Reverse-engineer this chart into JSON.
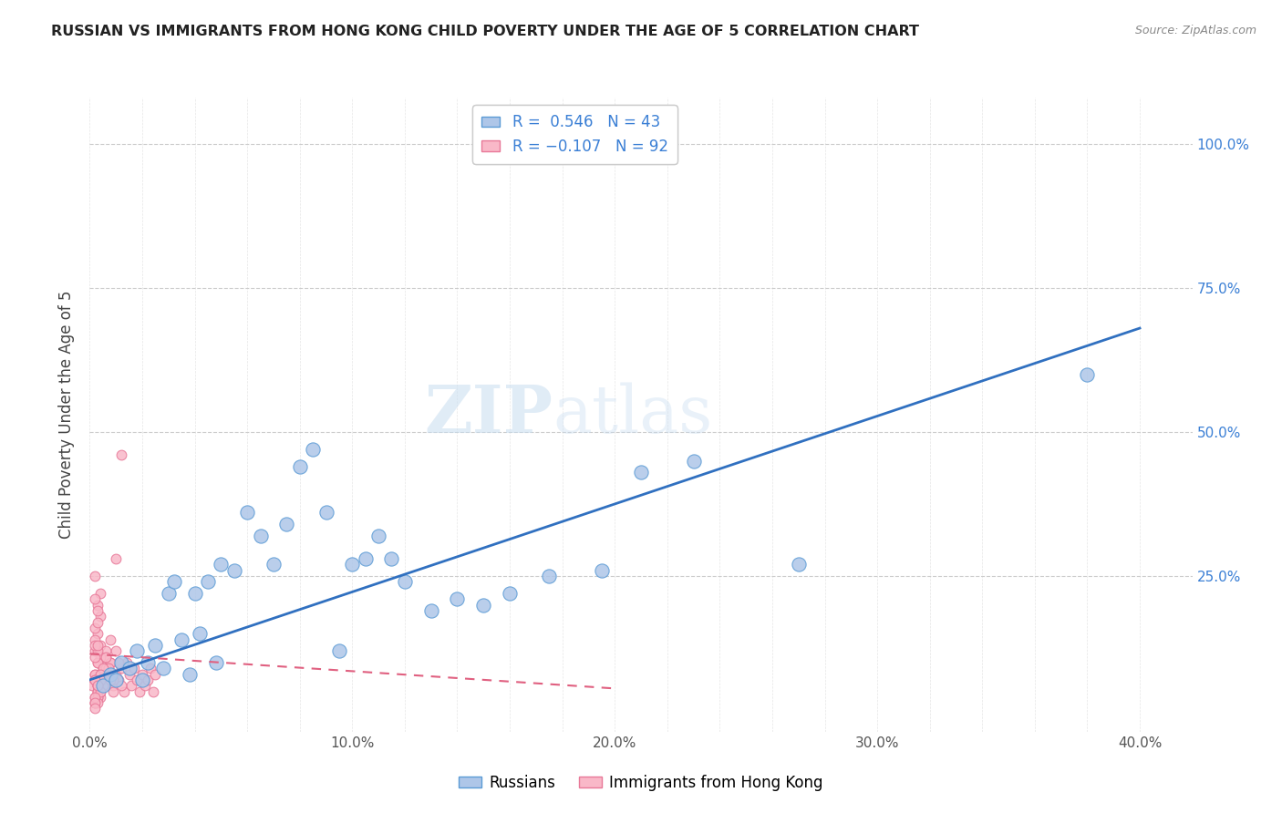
{
  "title": "RUSSIAN VS IMMIGRANTS FROM HONG KONG CHILD POVERTY UNDER THE AGE OF 5 CORRELATION CHART",
  "source": "Source: ZipAtlas.com",
  "ylabel": "Child Poverty Under the Age of 5",
  "xlim": [
    0.0,
    0.42
  ],
  "ylim": [
    -0.02,
    1.08
  ],
  "xtick_labels": [
    "0.0%",
    "",
    "",
    "",
    "",
    "10.0%",
    "",
    "",
    "",
    "",
    "20.0%",
    "",
    "",
    "",
    "",
    "30.0%",
    "",
    "",
    "",
    "",
    "40.0%"
  ],
  "xtick_values": [
    0.0,
    0.02,
    0.04,
    0.06,
    0.08,
    0.1,
    0.12,
    0.14,
    0.16,
    0.18,
    0.2,
    0.22,
    0.24,
    0.26,
    0.28,
    0.3,
    0.32,
    0.34,
    0.36,
    0.38,
    0.4
  ],
  "xtick_major_labels": [
    "0.0%",
    "10.0%",
    "20.0%",
    "30.0%",
    "40.0%"
  ],
  "xtick_major_values": [
    0.0,
    0.1,
    0.2,
    0.3,
    0.4
  ],
  "ytick_labels": [
    "100.0%",
    "75.0%",
    "50.0%",
    "25.0%"
  ],
  "ytick_values": [
    1.0,
    0.75,
    0.5,
    0.25
  ],
  "russian_color": "#aec6e8",
  "hk_color": "#f9b8c8",
  "russian_edge": "#5b9bd5",
  "hk_edge": "#e87898",
  "trendline_russian_color": "#3070c0",
  "trendline_hk_color": "#e06080",
  "legend_label1": "Russians",
  "legend_label2": "Immigrants from Hong Kong",
  "watermark_zip": "ZIP",
  "watermark_atlas": "atlas",
  "background_color": "#ffffff",
  "grid_color": "#cccccc",
  "title_color": "#222222",
  "axis_label_color": "#444444",
  "ytick_label_color": "#3a7fd5",
  "source_color": "#888888",
  "russian_x": [
    0.005,
    0.008,
    0.01,
    0.012,
    0.015,
    0.018,
    0.02,
    0.022,
    0.025,
    0.028,
    0.03,
    0.032,
    0.035,
    0.038,
    0.04,
    0.042,
    0.045,
    0.048,
    0.05,
    0.055,
    0.06,
    0.065,
    0.07,
    0.075,
    0.08,
    0.085,
    0.09,
    0.095,
    0.1,
    0.105,
    0.11,
    0.115,
    0.12,
    0.13,
    0.14,
    0.15,
    0.16,
    0.175,
    0.195,
    0.21,
    0.23,
    0.27,
    0.38
  ],
  "russian_y": [
    0.06,
    0.08,
    0.07,
    0.1,
    0.09,
    0.12,
    0.07,
    0.1,
    0.13,
    0.09,
    0.22,
    0.24,
    0.14,
    0.08,
    0.22,
    0.15,
    0.24,
    0.1,
    0.27,
    0.26,
    0.36,
    0.32,
    0.27,
    0.34,
    0.44,
    0.47,
    0.36,
    0.12,
    0.27,
    0.28,
    0.32,
    0.28,
    0.24,
    0.19,
    0.21,
    0.2,
    0.22,
    0.25,
    0.26,
    0.43,
    0.45,
    0.27,
    0.6
  ],
  "hk_x": [
    0.001,
    0.002,
    0.003,
    0.004,
    0.005,
    0.006,
    0.007,
    0.008,
    0.009,
    0.01,
    0.011,
    0.012,
    0.013,
    0.014,
    0.015,
    0.016,
    0.017,
    0.018,
    0.019,
    0.02,
    0.021,
    0.022,
    0.023,
    0.024,
    0.025,
    0.002,
    0.003,
    0.004,
    0.005,
    0.006,
    0.007,
    0.008,
    0.009,
    0.01,
    0.011,
    0.012,
    0.003,
    0.004,
    0.005,
    0.006,
    0.007,
    0.008,
    0.003,
    0.004,
    0.005,
    0.006,
    0.002,
    0.003,
    0.004,
    0.005,
    0.002,
    0.003,
    0.004,
    0.002,
    0.003,
    0.002,
    0.003,
    0.004,
    0.005,
    0.006,
    0.007,
    0.008,
    0.009,
    0.002,
    0.003,
    0.004,
    0.002,
    0.003,
    0.004,
    0.005,
    0.002,
    0.003,
    0.002,
    0.003,
    0.004,
    0.002,
    0.003,
    0.004,
    0.002,
    0.003,
    0.002,
    0.003,
    0.003,
    0.002,
    0.003,
    0.004,
    0.002,
    0.003,
    0.002,
    0.002,
    0.01,
    0.012
  ],
  "hk_y": [
    0.06,
    0.08,
    0.05,
    0.07,
    0.09,
    0.06,
    0.08,
    0.1,
    0.06,
    0.08,
    0.07,
    0.09,
    0.05,
    0.1,
    0.08,
    0.06,
    0.09,
    0.07,
    0.05,
    0.08,
    0.06,
    0.07,
    0.09,
    0.05,
    0.08,
    0.12,
    0.1,
    0.13,
    0.08,
    0.11,
    0.09,
    0.14,
    0.07,
    0.12,
    0.1,
    0.06,
    0.15,
    0.18,
    0.09,
    0.12,
    0.08,
    0.1,
    0.2,
    0.22,
    0.07,
    0.09,
    0.25,
    0.19,
    0.11,
    0.08,
    0.14,
    0.12,
    0.07,
    0.16,
    0.1,
    0.13,
    0.17,
    0.08,
    0.06,
    0.11,
    0.09,
    0.07,
    0.05,
    0.21,
    0.06,
    0.04,
    0.08,
    0.13,
    0.05,
    0.09,
    0.07,
    0.04,
    0.11,
    0.06,
    0.08,
    0.03,
    0.05,
    0.07,
    0.04,
    0.06,
    0.03,
    0.05,
    0.04,
    0.07,
    0.03,
    0.05,
    0.04,
    0.06,
    0.03,
    0.02,
    0.28,
    0.46
  ]
}
